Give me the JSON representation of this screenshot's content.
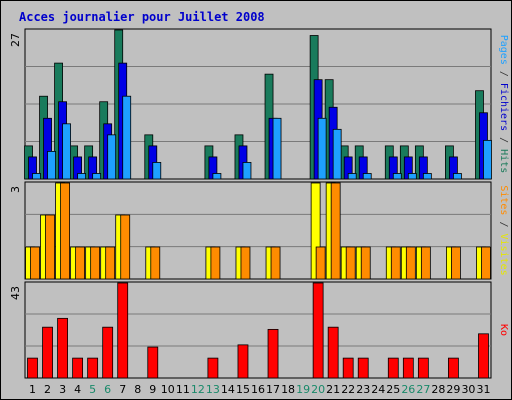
{
  "chart_data": {
    "type": "bar",
    "title": "Acces journalier pour Juillet 2008",
    "categories": [
      "1",
      "2",
      "3",
      "4",
      "5",
      "6",
      "7",
      "8",
      "9",
      "10",
      "11",
      "12",
      "13",
      "14",
      "15",
      "16",
      "17",
      "18",
      "19",
      "20",
      "21",
      "22",
      "23",
      "24",
      "25",
      "26",
      "27",
      "28",
      "29",
      "30",
      "31"
    ],
    "weekend_days": [
      "5",
      "6",
      "12",
      "13",
      "19",
      "20",
      "26",
      "27"
    ],
    "panels": [
      {
        "id": "hits",
        "y_max_label": "27",
        "y_max": 27,
        "right_label_parts": [
          {
            "text": "Pages",
            "color": "#1ea0ff"
          },
          {
            "text": " / ",
            "color": "#333333"
          },
          {
            "text": "Fichiers",
            "color": "#0000cc"
          },
          {
            "text": " / ",
            "color": "#333333"
          },
          {
            "text": "Hits",
            "color": "#1a7a5a"
          }
        ],
        "series": [
          {
            "name": "Hits",
            "color": "#197b5c",
            "values": [
              6,
              15,
              21,
              6,
              6,
              14,
              27,
              0,
              8,
              0,
              0,
              0,
              6,
              0,
              8,
              0,
              19,
              0,
              0,
              26,
              18,
              6,
              6,
              0,
              6,
              6,
              6,
              0,
              6,
              0,
              16
            ]
          },
          {
            "name": "Fichiers",
            "color": "#0000e6",
            "values": [
              4,
              11,
              14,
              4,
              4,
              10,
              21,
              0,
              6,
              0,
              0,
              0,
              4,
              0,
              6,
              0,
              11,
              0,
              0,
              18,
              13,
              4,
              4,
              0,
              4,
              4,
              4,
              0,
              4,
              0,
              12
            ]
          },
          {
            "name": "Pages",
            "color": "#1ea0ff",
            "values": [
              1,
              5,
              10,
              1,
              1,
              8,
              15,
              0,
              3,
              0,
              0,
              0,
              1,
              0,
              3,
              0,
              11,
              0,
              0,
              11,
              9,
              1,
              1,
              0,
              1,
              1,
              1,
              0,
              1,
              0,
              7
            ]
          }
        ]
      },
      {
        "id": "visits",
        "y_max_label": "3",
        "y_max": 3,
        "right_label_parts": [
          {
            "text": "Sites",
            "color": "#ff8c00"
          },
          {
            "text": " / ",
            "color": "#333333"
          },
          {
            "text": "Visites",
            "color": "#e6e600"
          }
        ],
        "series": [
          {
            "name": "Visites",
            "color": "#ffff00",
            "values": [
              1,
              2,
              3,
              1,
              1,
              1,
              2,
              0,
              1,
              0,
              0,
              0,
              1,
              0,
              1,
              0,
              1,
              0,
              0,
              3,
              3,
              1,
              1,
              0,
              1,
              1,
              1,
              0,
              1,
              0,
              1
            ]
          },
          {
            "name": "Sites",
            "color": "#ff8c00",
            "values": [
              1,
              2,
              3,
              1,
              1,
              1,
              2,
              0,
              1,
              0,
              0,
              0,
              1,
              0,
              1,
              0,
              1,
              0,
              0,
              1,
              3,
              1,
              1,
              0,
              1,
              1,
              1,
              0,
              1,
              0,
              1
            ]
          }
        ]
      },
      {
        "id": "kb",
        "y_max_label": "43",
        "y_max": 43,
        "right_label_parts": [
          {
            "text": "Ko",
            "color": "#ff0000"
          }
        ],
        "series": [
          {
            "name": "Ko",
            "color": "#ff0000",
            "values": [
              9,
              23,
              27,
              9,
              9,
              23,
              43,
              0,
              14,
              0,
              0,
              0,
              9,
              0,
              15,
              0,
              22,
              0,
              0,
              43,
              23,
              9,
              9,
              0,
              9,
              9,
              9,
              0,
              9,
              0,
              20
            ]
          }
        ]
      }
    ]
  }
}
